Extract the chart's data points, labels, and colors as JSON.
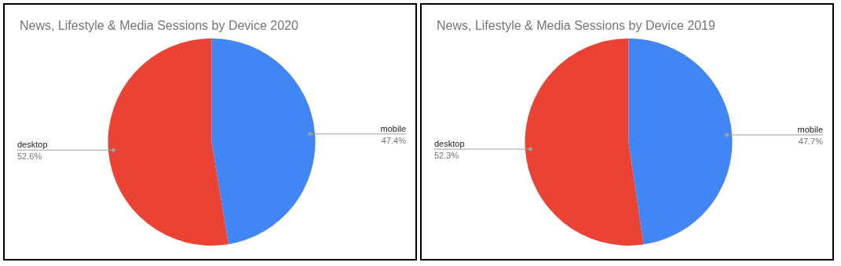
{
  "chart_data": [
    {
      "type": "pie",
      "title": "News, Lifestyle & Media Sessions by Device 2020",
      "categories": [
        "mobile",
        "desktop"
      ],
      "values": [
        47.4,
        52.6
      ],
      "colors": [
        "#4285f4",
        "#ea4335"
      ],
      "value_labels": [
        "47.4%",
        "52.6%"
      ],
      "legend": false
    },
    {
      "type": "pie",
      "title": "News, Lifestyle & Media Sessions by Device 2019",
      "categories": [
        "mobile",
        "desktop"
      ],
      "values": [
        47.7,
        52.3
      ],
      "colors": [
        "#4285f4",
        "#ea4335"
      ],
      "value_labels": [
        "47.7%",
        "52.3%"
      ],
      "legend": false
    }
  ]
}
